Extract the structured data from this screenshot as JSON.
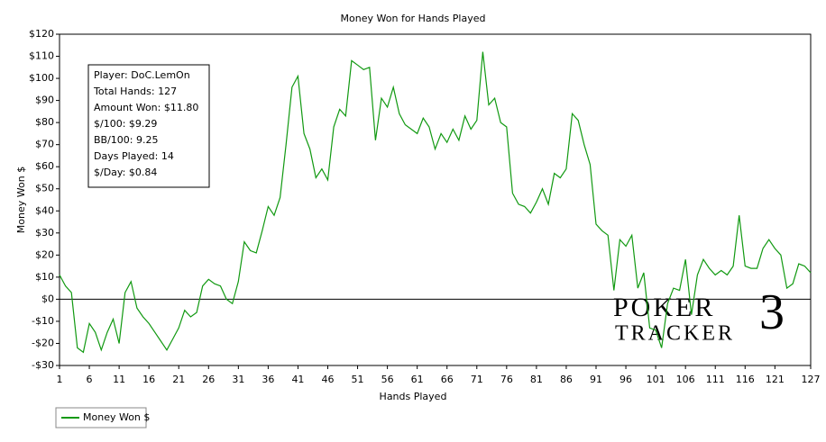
{
  "chart_data": {
    "type": "line",
    "title": "Money Won for Hands Played",
    "x_label": "Hands Played",
    "y_label": "Money Won $",
    "x": [
      1,
      2,
      3,
      4,
      5,
      6,
      7,
      8,
      9,
      10,
      11,
      12,
      13,
      14,
      15,
      16,
      17,
      18,
      19,
      20,
      21,
      22,
      23,
      24,
      25,
      26,
      27,
      28,
      29,
      30,
      31,
      32,
      33,
      34,
      35,
      36,
      37,
      38,
      39,
      40,
      41,
      42,
      43,
      44,
      45,
      46,
      47,
      48,
      49,
      50,
      51,
      52,
      53,
      54,
      55,
      56,
      57,
      58,
      59,
      60,
      61,
      62,
      63,
      64,
      65,
      66,
      67,
      68,
      69,
      70,
      71,
      72,
      73,
      74,
      75,
      76,
      77,
      78,
      79,
      80,
      81,
      82,
      83,
      84,
      85,
      86,
      87,
      88,
      89,
      90,
      91,
      92,
      93,
      94,
      95,
      96,
      97,
      98,
      99,
      100,
      101,
      102,
      103,
      104,
      105,
      106,
      107,
      108,
      109,
      110,
      111,
      112,
      113,
      114,
      115,
      116,
      117,
      118,
      119,
      120,
      121,
      122,
      123,
      124,
      125,
      126,
      127
    ],
    "series": [
      {
        "name": "Money Won $",
        "color": "#119911",
        "values": [
          11,
          6,
          3,
          -22,
          -24,
          -11,
          -15,
          -23,
          -15,
          -9,
          -20,
          3,
          8,
          -4,
          -8,
          -11,
          -15,
          -19,
          -23,
          -18,
          -13,
          -5,
          -8,
          -6,
          6,
          9,
          7,
          6,
          0,
          -2,
          8,
          26,
          22,
          21,
          31,
          42,
          38,
          46,
          70,
          96,
          101,
          75,
          68,
          55,
          59,
          54,
          78,
          86,
          83,
          108,
          106,
          104,
          105,
          72,
          91,
          87,
          96,
          84,
          79,
          77,
          75,
          82,
          78,
          68,
          75,
          71,
          77,
          72,
          83,
          77,
          81,
          112,
          88,
          91,
          80,
          78,
          48,
          43,
          42,
          39,
          44,
          50,
          43,
          57,
          55,
          59,
          84,
          81,
          70,
          61,
          34,
          31,
          29,
          4,
          27,
          24,
          29,
          5,
          12,
          -13,
          -14,
          -22,
          -2,
          5,
          4,
          18,
          -7,
          11,
          18,
          14,
          11,
          13,
          11,
          15,
          38,
          15,
          14,
          14,
          23,
          27,
          23,
          20,
          5,
          7,
          16,
          15,
          12
        ]
      }
    ],
    "xlim": [
      1,
      127
    ],
    "xticks": [
      1,
      6,
      11,
      16,
      21,
      26,
      31,
      36,
      41,
      46,
      51,
      56,
      61,
      66,
      71,
      76,
      81,
      86,
      91,
      96,
      101,
      106,
      111,
      116,
      121,
      127
    ],
    "ylim": [
      -30,
      120
    ],
    "yticks": [
      {
        "value": -30,
        "label": "-$30"
      },
      {
        "value": -20,
        "label": "-$20"
      },
      {
        "value": -10,
        "label": "-$10"
      },
      {
        "value": 0,
        "label": "$0"
      },
      {
        "value": 10,
        "label": "$10"
      },
      {
        "value": 20,
        "label": "$20"
      },
      {
        "value": 30,
        "label": "$30"
      },
      {
        "value": 40,
        "label": "$40"
      },
      {
        "value": 50,
        "label": "$50"
      },
      {
        "value": 60,
        "label": "$60"
      },
      {
        "value": 70,
        "label": "$70"
      },
      {
        "value": 80,
        "label": "$80"
      },
      {
        "value": 90,
        "label": "$90"
      },
      {
        "value": 100,
        "label": "$100"
      },
      {
        "value": 110,
        "label": "$110"
      },
      {
        "value": 120,
        "label": "$120"
      }
    ],
    "zero_line": true,
    "info_box": [
      "Player: DoC.LemOn",
      "Total Hands: 127",
      "Amount Won: $11.80",
      "$/100: $9.29",
      "BB/100: 9.25",
      "Days Played: 14",
      "$/Day: $0.84"
    ],
    "watermark": [
      "POKER",
      "TRACKER",
      "3"
    ]
  }
}
